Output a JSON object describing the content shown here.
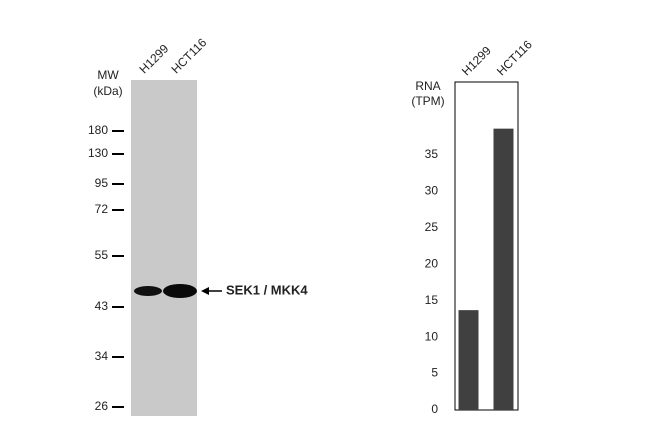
{
  "blot": {
    "mw_label": "MW",
    "mw_unit": "(kDa)",
    "lanes": [
      "H1299",
      "HCT116"
    ],
    "markers": [
      180,
      130,
      95,
      72,
      55,
      43,
      34,
      26
    ],
    "band_label": "SEK1 / MKK4"
  },
  "chart_data": {
    "type": "bar",
    "y_label": [
      "RNA",
      "(TPM)"
    ],
    "categories": [
      "H1299",
      "HCT116"
    ],
    "values": [
      13.7,
      38.6
    ],
    "color": "#404040",
    "ylim": [
      0,
      45
    ],
    "yticks": [
      0,
      5,
      10,
      15,
      20,
      25,
      30,
      35
    ]
  }
}
